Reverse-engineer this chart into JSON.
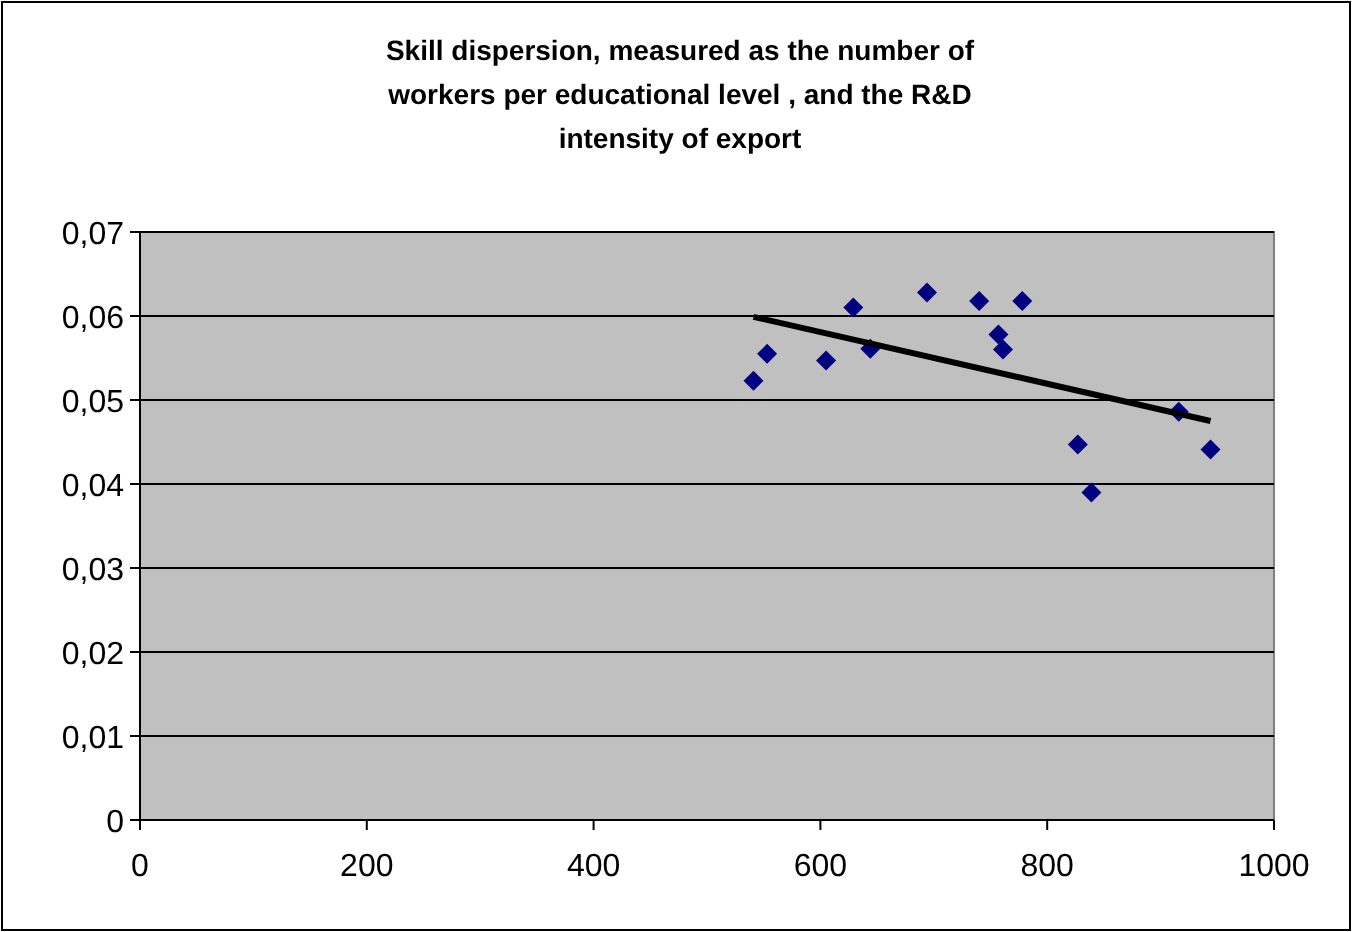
{
  "chart_data": {
    "type": "scatter",
    "title": "Skill dispersion, measured as the number of workers per educational level , and the R&D intensity of export",
    "xlim": [
      0,
      1000
    ],
    "xticks": [
      0,
      200,
      400,
      600,
      800,
      1000
    ],
    "ylim": [
      0,
      0.07
    ],
    "yticks": [
      {
        "value": 0,
        "label": "0"
      },
      {
        "value": 0.01,
        "label": "0,01"
      },
      {
        "value": 0.02,
        "label": "0,02"
      },
      {
        "value": 0.03,
        "label": "0,03"
      },
      {
        "value": 0.04,
        "label": "0,04"
      },
      {
        "value": 0.05,
        "label": "0,05"
      },
      {
        "value": 0.06,
        "label": "0,06"
      },
      {
        "value": 0.07,
        "label": "0,07"
      }
    ],
    "grid": "y",
    "series": [
      {
        "color": "#000080",
        "marker": "diamond",
        "x": [
          541,
          553,
          605,
          629,
          644,
          694,
          740,
          757,
          761,
          778,
          827,
          839,
          916,
          944
        ],
        "values": [
          0.0523,
          0.0555,
          0.0547,
          0.061,
          0.0561,
          0.0628,
          0.0618,
          0.0578,
          0.056,
          0.0618,
          0.0447,
          0.039,
          0.0486,
          0.0441
        ]
      },
      {
        "type": "line",
        "color": "#000000",
        "marker": "none",
        "x": [
          541,
          944
        ],
        "values": [
          0.0599,
          0.0475
        ]
      }
    ]
  }
}
